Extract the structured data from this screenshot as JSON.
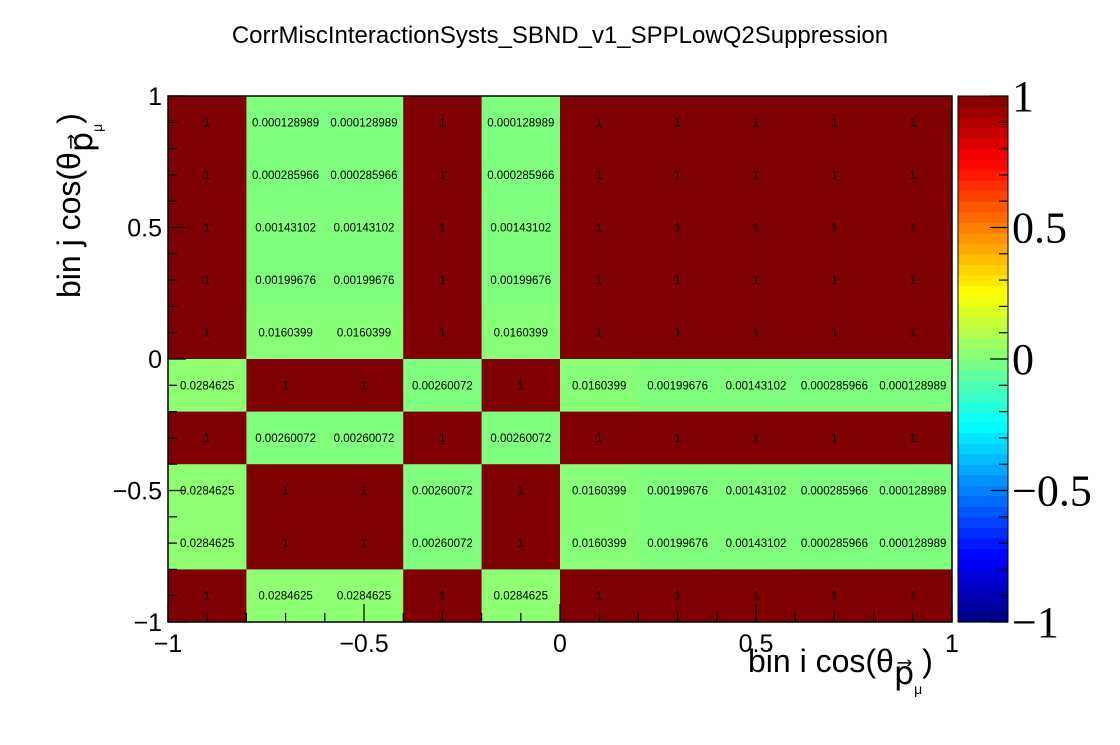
{
  "chart_data": {
    "type": "heatmap",
    "title": "CorrMiscInteractionSysts_SBND_v1_SPPLowQ2Suppression",
    "xlabel": {
      "main": "bin i cos(θ",
      "sub": "p⃗",
      "subsub": "μ",
      "close": ")"
    },
    "ylabel": {
      "main": "bin j cos(θ",
      "sub": "p⃗",
      "subsub": "μ",
      "close": ")"
    },
    "xlim": [
      -1,
      1
    ],
    "ylim": [
      -1,
      1
    ],
    "x_ticks": [
      "−1",
      "−0.5",
      "0",
      "0.5",
      "1"
    ],
    "y_ticks": [
      "−1",
      "−0.5",
      "0",
      "0.5",
      "1"
    ],
    "zlim": [
      -1,
      1
    ],
    "z_ticks": [
      "−1",
      "−0.5",
      "0",
      "0.5",
      "1"
    ],
    "colormap": [
      "#00007f",
      "#0000ff",
      "#007fff",
      "#00ffff",
      "#7fff7f",
      "#ffff00",
      "#ff7f00",
      "#ff0000",
      "#7f0000"
    ],
    "x_bin_edges": [
      -1.0,
      -0.8,
      -0.6,
      -0.4,
      -0.2,
      0.0,
      0.2,
      0.4,
      0.6,
      0.8,
      1.0
    ],
    "rows": [
      {
        "y": [
          0.8,
          1.0
        ],
        "values": [
          1,
          0.000128989,
          0.000128989,
          1,
          0.000128989,
          1,
          1,
          1,
          1,
          1
        ],
        "labels": [
          "1",
          "0.000128989",
          "0.000128989",
          "1",
          "0.000128989",
          "1",
          "1",
          "1",
          "1",
          "1"
        ]
      },
      {
        "y": [
          0.6,
          0.8
        ],
        "values": [
          1,
          0.000285966,
          0.000285966,
          1,
          0.000285966,
          1,
          1,
          1,
          1,
          1
        ],
        "labels": [
          "1",
          "0.000285966",
          "0.000285966",
          "1",
          "0.000285966",
          "1",
          "1",
          "1",
          "1",
          "1"
        ]
      },
      {
        "y": [
          0.4,
          0.6
        ],
        "values": [
          1,
          0.00143102,
          0.00143102,
          1,
          0.00143102,
          1,
          1,
          1,
          1,
          1
        ],
        "labels": [
          "1",
          "0.00143102",
          "0.00143102",
          "1",
          "0.00143102",
          "1",
          "1",
          "1",
          "1",
          "1"
        ]
      },
      {
        "y": [
          0.2,
          0.4
        ],
        "values": [
          1,
          0.00199676,
          0.00199676,
          1,
          0.00199676,
          1,
          1,
          1,
          1,
          1
        ],
        "labels": [
          "1",
          "0.00199676",
          "0.00199676",
          "1",
          "0.00199676",
          "1",
          "1",
          "1",
          "1",
          "1"
        ]
      },
      {
        "y": [
          0.0,
          0.2
        ],
        "values": [
          1,
          0.0160399,
          0.0160399,
          1,
          0.0160399,
          1,
          1,
          1,
          1,
          1
        ],
        "labels": [
          "1",
          "0.0160399",
          "0.0160399",
          "1",
          "0.0160399",
          "1",
          "1",
          "1",
          "1",
          "1"
        ]
      },
      {
        "y": [
          -0.2,
          0.0
        ],
        "values": [
          0.0284625,
          1,
          1,
          0.00260072,
          1,
          0.0160399,
          0.00199676,
          0.00143102,
          0.000285966,
          0.000128989
        ],
        "labels": [
          "0.0284625",
          "1",
          "1",
          "0.00260072",
          "1",
          "0.0160399",
          "0.00199676",
          "0.00143102",
          "0.000285966",
          "0.000128989"
        ]
      },
      {
        "y": [
          -0.4,
          -0.2
        ],
        "values": [
          1,
          0.00260072,
          0.00260072,
          1,
          0.00260072,
          1,
          1,
          1,
          1,
          1
        ],
        "labels": [
          "1",
          "0.00260072",
          "0.00260072",
          "1",
          "0.00260072",
          "1",
          "1",
          "1",
          "1",
          "1"
        ]
      },
      {
        "y": [
          -0.6,
          -0.4
        ],
        "values": [
          0.0284625,
          1,
          1,
          0.00260072,
          1,
          0.0160399,
          0.00199676,
          0.00143102,
          0.000285966,
          0.000128989
        ],
        "labels": [
          "0.0284625",
          "1",
          "1",
          "0.00260072",
          "1",
          "0.0160399",
          "0.00199676",
          "0.00143102",
          "0.000285966",
          "0.000128989"
        ]
      },
      {
        "y": [
          -0.8,
          -0.6
        ],
        "values": [
          0.0284625,
          1,
          1,
          0.00260072,
          1,
          0.0160399,
          0.00199676,
          0.00143102,
          0.000285966,
          0.000128989
        ],
        "labels": [
          "0.0284625",
          "1",
          "1",
          "0.00260072",
          "1",
          "0.0160399",
          "0.00199676",
          "0.00143102",
          "0.000285966",
          "0.000128989"
        ]
      },
      {
        "y": [
          -1.0,
          -0.8
        ],
        "values": [
          1,
          0.0284625,
          0.0284625,
          1,
          0.0284625,
          1,
          1,
          1,
          1,
          1
        ],
        "labels": [
          "1",
          "0.0284625",
          "0.0284625",
          "1",
          "0.0284625",
          "1",
          "1",
          "1",
          "1",
          "1"
        ]
      }
    ]
  }
}
